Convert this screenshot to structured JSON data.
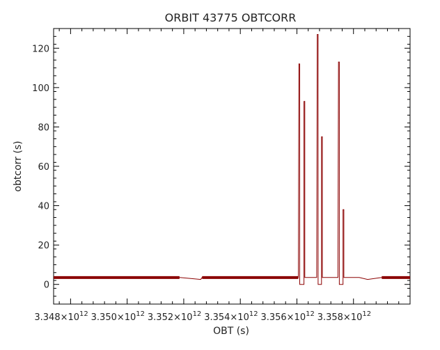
{
  "chart_data": {
    "type": "line",
    "title": "ORBIT 43775 OBTCORR",
    "xlabel": "OBT (s)",
    "ylabel": "obtcorr (s)",
    "xlim": [
      3347400000000.0,
      3360000000000.0
    ],
    "ylim": [
      -10,
      130
    ],
    "grid": false,
    "legend": "none",
    "x_ticks": [
      {
        "value": 3348000000000.0,
        "mantissa": "3.348×10",
        "exp": "12"
      },
      {
        "value": 3350000000000.0,
        "mantissa": "3.350×10",
        "exp": "12"
      },
      {
        "value": 3352000000000.0,
        "mantissa": "3.352×10",
        "exp": "12"
      },
      {
        "value": 3354000000000.0,
        "mantissa": "3.354×10",
        "exp": "12"
      },
      {
        "value": 3356000000000.0,
        "mantissa": "3.356×10",
        "exp": "12"
      },
      {
        "value": 3358000000000.0,
        "mantissa": "3.358×10",
        "exp": "12"
      }
    ],
    "y_ticks": [
      "0",
      "20",
      "40",
      "60",
      "80",
      "100",
      "120"
    ],
    "series": [
      {
        "color": "#8b0000",
        "points": [
          [
            3347400000000.0,
            3.5
          ],
          [
            3351850000000.0,
            3.5
          ],
          [
            3352250000000.0,
            3.0
          ],
          [
            3352600000000.0,
            2.5
          ],
          [
            3352650000000.0,
            3.5
          ],
          [
            3356050000000.0,
            3.5
          ],
          [
            3356070000000.0,
            112
          ],
          [
            3356100000000.0,
            112
          ],
          [
            3356100000000.0,
            0
          ],
          [
            3356250000000.0,
            0
          ],
          [
            3356250000000.0,
            93
          ],
          [
            3356280000000.0,
            93
          ],
          [
            3356280000000.0,
            3.5
          ],
          [
            3356700000000.0,
            3.5
          ],
          [
            3356720000000.0,
            127
          ],
          [
            3356750000000.0,
            127
          ],
          [
            3356750000000.0,
            0
          ],
          [
            3356870000000.0,
            0
          ],
          [
            3356870000000.0,
            75
          ],
          [
            3356900000000.0,
            75
          ],
          [
            3356900000000.0,
            3.5
          ],
          [
            3357450000000.0,
            3.5
          ],
          [
            3357470000000.0,
            113
          ],
          [
            3357500000000.0,
            113
          ],
          [
            3357500000000.0,
            0
          ],
          [
            3357630000000.0,
            0
          ],
          [
            3357630000000.0,
            38
          ],
          [
            3357660000000.0,
            38
          ],
          [
            3357660000000.0,
            3.5
          ],
          [
            3358200000000.0,
            3.5
          ],
          [
            3358500000000.0,
            2.5
          ],
          [
            3359000000000.0,
            3.5
          ],
          [
            3360000000000.0,
            3.5
          ]
        ]
      }
    ]
  }
}
